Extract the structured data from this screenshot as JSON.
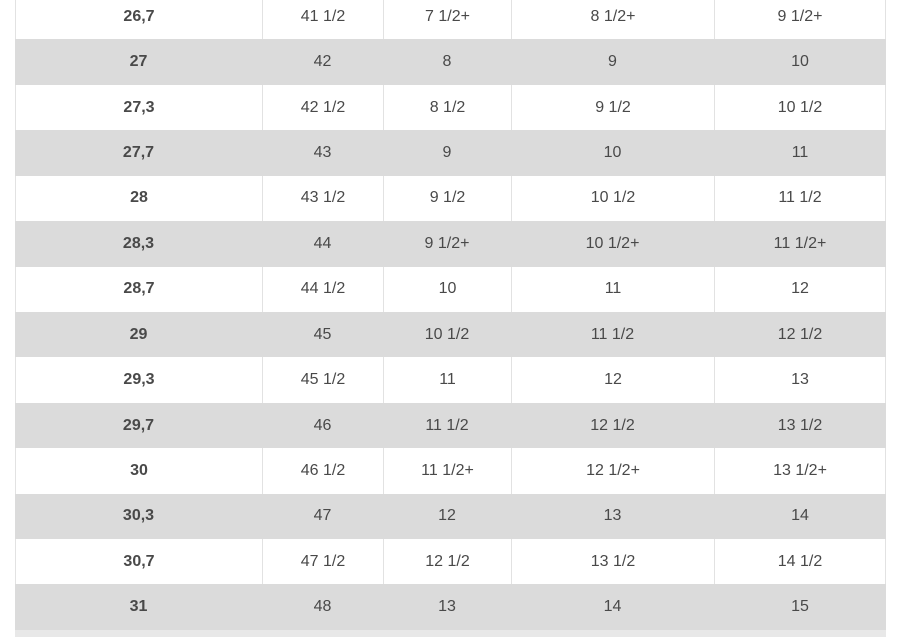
{
  "colors": {
    "stripe_gray": "#dbdbdb",
    "cell_border": "#e2e2e2",
    "text": "#494949",
    "below_strip": "#e8e8e8",
    "background": "#ffffff"
  },
  "table": {
    "rows": [
      [
        "26,7",
        "41 1/2",
        "7 1/2+",
        "8 1/2+",
        "9 1/2+"
      ],
      [
        "27",
        "42",
        "8",
        "9",
        "10"
      ],
      [
        "27,3",
        "42 1/2",
        "8 1/2",
        "9 1/2",
        "10 1/2"
      ],
      [
        "27,7",
        "43",
        "9",
        "10",
        "11"
      ],
      [
        "28",
        "43 1/2",
        "9 1/2",
        "10 1/2",
        "11 1/2"
      ],
      [
        "28,3",
        "44",
        "9 1/2+",
        "10 1/2+",
        "11 1/2+"
      ],
      [
        "28,7",
        "44 1/2",
        "10",
        "11",
        "12"
      ],
      [
        "29",
        "45",
        "10 1/2",
        "11 1/2",
        "12 1/2"
      ],
      [
        "29,3",
        "45 1/2",
        "11",
        "12",
        "13"
      ],
      [
        "29,7",
        "46",
        "11 1/2",
        "12 1/2",
        "13 1/2"
      ],
      [
        "30",
        "46 1/2",
        "11 1/2+",
        "12 1/2+",
        "13 1/2+"
      ],
      [
        "30,3",
        "47",
        "12",
        "13",
        "14"
      ],
      [
        "30,7",
        "47 1/2",
        "12 1/2",
        "13 1/2",
        "14 1/2"
      ],
      [
        "31",
        "48",
        "13",
        "14",
        "15"
      ]
    ]
  }
}
